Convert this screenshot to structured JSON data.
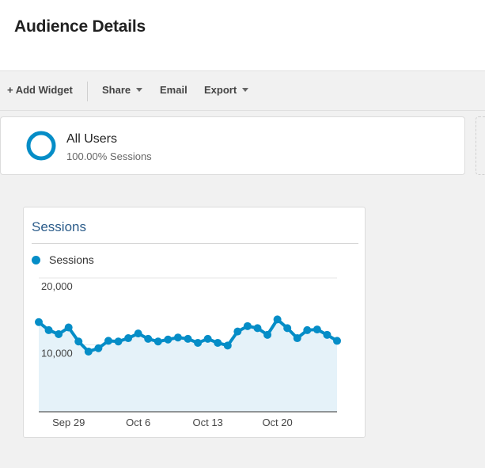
{
  "page": {
    "title": "Audience Details"
  },
  "toolbar": {
    "add_widget": "+ Add Widget",
    "share": "Share",
    "email": "Email",
    "export": "Export"
  },
  "segment": {
    "name": "All Users",
    "subtitle": "100.00% Sessions",
    "ring_color": "#058dc7",
    "ring_icon": "donut-icon"
  },
  "widget": {
    "title": "Sessions",
    "legend_label": "Sessions"
  },
  "chart_data": {
    "type": "area",
    "title": "Sessions",
    "legend": [
      "Sessions"
    ],
    "series": [
      {
        "name": "Sessions",
        "color": "#058dc7",
        "fill": "#e5f2f9",
        "values": [
          13400,
          12200,
          11600,
          12600,
          10500,
          9000,
          9500,
          10600,
          10500,
          11000,
          11700,
          10900,
          10500,
          10800,
          11100,
          10900,
          10300,
          10900,
          10300,
          9900,
          12000,
          12800,
          12500,
          11500,
          13800,
          12500,
          11000,
          12200,
          12300,
          11500,
          10600
        ]
      }
    ],
    "x_tick_labels": [
      "Sep 29",
      "Oct 6",
      "Oct 13",
      "Oct 20"
    ],
    "x_tick_indices": [
      3,
      10,
      17,
      24
    ],
    "y_ticks": [
      10000,
      20000
    ],
    "y_tick_labels": [
      "10,000",
      "20,000"
    ],
    "ylim": [
      0,
      20000
    ],
    "grid": true
  }
}
